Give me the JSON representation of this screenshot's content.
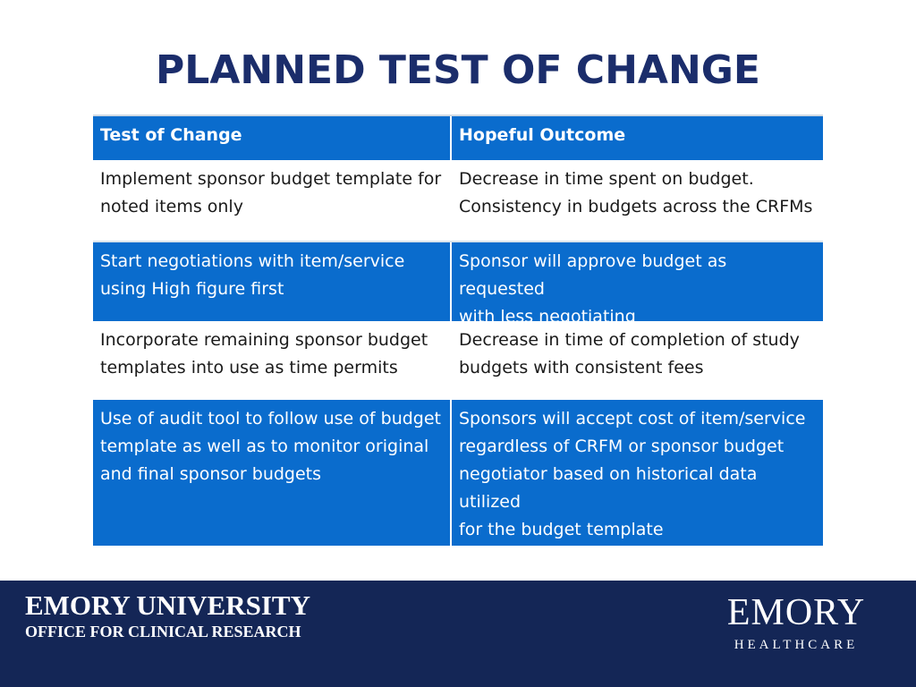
{
  "slide": {
    "title": "PLANNED TEST OF CHANGE"
  },
  "table": {
    "headers": [
      "Test of Change",
      "Hopeful Outcome"
    ],
    "rows": [
      {
        "test": "Implement sponsor budget template for\nnoted items only",
        "outcome": "Decrease in time spent on budget.\nConsistency in budgets across the CRFMs"
      },
      {
        "test": "Start negotiations with item/service\nusing High figure first",
        "outcome": "Sponsor will approve budget as requested\nwith less negotiating"
      },
      {
        "test": "Incorporate remaining sponsor budget\ntemplates into use as time permits",
        "outcome": "Decrease in time of completion of study\nbudgets with consistent fees"
      },
      {
        "test": "Use of audit tool to follow use of budget\ntemplate as well as to monitor original\nand final sponsor budgets",
        "outcome": "Sponsors will accept cost of item/service\nregardless of CRFM or sponsor budget\nnegotiator based on historical data utilized\nfor the budget template"
      }
    ]
  },
  "footer": {
    "org_name": "EMORY UNIVERSITY",
    "org_sub": "OFFICE FOR CLINICAL RESEARCH",
    "logo_main": "EMORY",
    "logo_sub": "HEALTHCARE"
  },
  "colors": {
    "title": "#1b2d6b",
    "table_blue": "#0a6ccd",
    "footer_bg": "#142656"
  }
}
